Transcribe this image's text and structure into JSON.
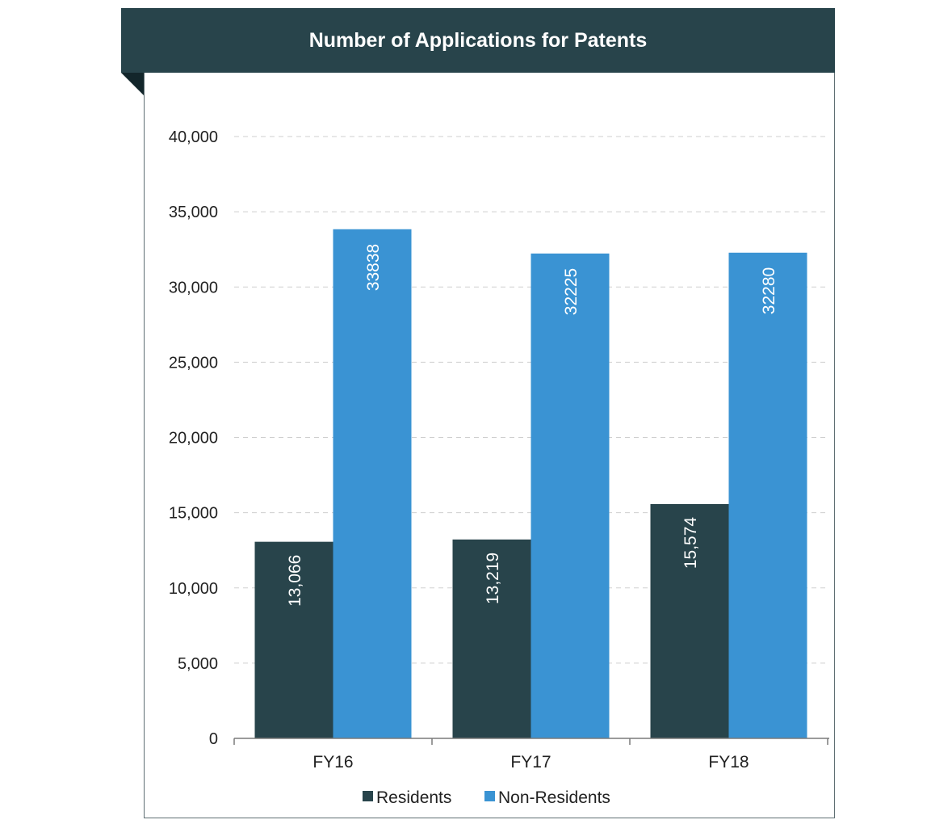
{
  "chart_data": {
    "type": "bar",
    "title": "Number of Applications for Patents",
    "categories": [
      "FY16",
      "FY17",
      "FY18"
    ],
    "series": [
      {
        "name": "Residents",
        "color": "#28444b",
        "values": [
          13066,
          13219,
          15574
        ],
        "labels": [
          "13,066",
          "13,219",
          "15,574"
        ]
      },
      {
        "name": "Non-Residents",
        "color": "#3a93d3",
        "values": [
          33838,
          32225,
          32280
        ],
        "labels": [
          "33838",
          "32225",
          "32280"
        ]
      }
    ],
    "ylim": [
      0,
      40000
    ],
    "yticks": [
      0,
      5000,
      10000,
      15000,
      20000,
      25000,
      30000,
      35000,
      40000
    ],
    "ytick_labels": [
      "0",
      "5,000",
      "10,000",
      "15,000",
      "20,000",
      "25,000",
      "30,000",
      "35,000",
      "40,000"
    ],
    "grid": true,
    "legend_position": "bottom"
  }
}
